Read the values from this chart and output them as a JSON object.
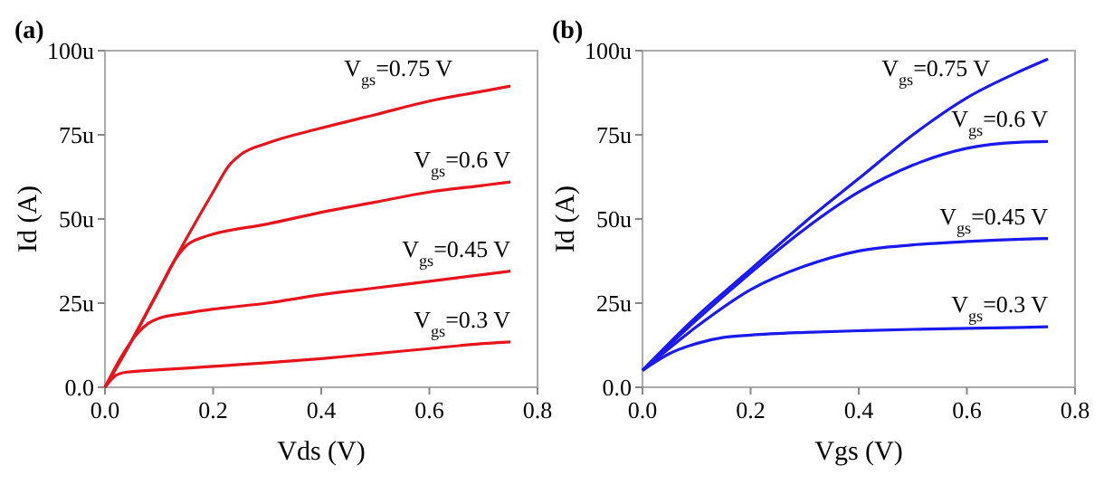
{
  "chart_data": [
    {
      "type": "line",
      "title": "(a)",
      "xlabel": "Vds (V)",
      "ylabel": "Id (A)",
      "xlim": [
        0,
        0.8
      ],
      "ylim": [
        0,
        100
      ],
      "xticks": [
        {
          "value": 0,
          "label": "0.0"
        },
        0.2,
        0.4,
        0.6,
        0.8
      ],
      "yticks": [
        {
          "value": 0,
          "label": "0.0"
        },
        {
          "value": 25,
          "label": "25u"
        },
        {
          "value": 50,
          "label": "50u"
        },
        {
          "value": 75,
          "label": "75u"
        },
        {
          "value": 100,
          "label": "100u"
        }
      ],
      "grid": false,
      "marker": "none",
      "line_style": "solid",
      "series": [
        {
          "name": "V$_{gs}$=0.75 V",
          "color": "#e8141c",
          "x": [
            0,
            0.05,
            0.1,
            0.15,
            0.2,
            0.23,
            0.25,
            0.3,
            0.4,
            0.5,
            0.6,
            0.7,
            0.75
          ],
          "values": [
            0,
            14,
            29,
            44,
            58,
            66,
            69,
            72.5,
            77,
            81,
            85,
            88,
            89.5
          ]
        },
        {
          "name": "V$_{gs}$=0.6 V",
          "color": "#e8141c",
          "x": [
            0,
            0.05,
            0.1,
            0.13,
            0.15,
            0.18,
            0.2,
            0.3,
            0.4,
            0.5,
            0.6,
            0.7,
            0.75
          ],
          "values": [
            0,
            14,
            29,
            38,
            42,
            44.5,
            45.5,
            48.5,
            52,
            55,
            58,
            60,
            61
          ]
        },
        {
          "name": "V$_{gs}$=0.45 V",
          "color": "#e8141c",
          "x": [
            0,
            0.03,
            0.06,
            0.08,
            0.1,
            0.15,
            0.2,
            0.3,
            0.4,
            0.5,
            0.6,
            0.7,
            0.75
          ],
          "values": [
            0,
            9,
            16,
            19,
            20.5,
            22,
            23.2,
            25,
            27.5,
            29.5,
            31.5,
            33.5,
            34.5
          ]
        },
        {
          "name": "V$_{gs}$=0.3 V",
          "color": "#e8141c",
          "x": [
            0,
            0.01,
            0.02,
            0.04,
            0.1,
            0.2,
            0.3,
            0.4,
            0.5,
            0.6,
            0.7,
            0.75
          ],
          "values": [
            0,
            2,
            3.5,
            4.5,
            5.2,
            6.2,
            7.3,
            8.5,
            10,
            11.5,
            13,
            13.5
          ]
        }
      ]
    },
    {
      "type": "line",
      "title": "(b)",
      "xlabel": "Vgs (V)",
      "ylabel": "Id (A)",
      "xlim": [
        0,
        0.8
      ],
      "ylim": [
        0,
        100
      ],
      "xticks": [
        {
          "value": 0,
          "label": "0.0"
        },
        0.2,
        0.4,
        0.6,
        0.8
      ],
      "yticks": [
        {
          "value": 0,
          "label": "0.0"
        },
        {
          "value": 25,
          "label": "25u"
        },
        {
          "value": 50,
          "label": "50u"
        },
        {
          "value": 75,
          "label": "75u"
        },
        {
          "value": 100,
          "label": "100u"
        }
      ],
      "grid": false,
      "marker": "none",
      "line_style": "solid",
      "series": [
        {
          "name": "V$_{gs}$=0.75 V",
          "color": "#1a1aee",
          "x": [
            0,
            0.1,
            0.2,
            0.3,
            0.4,
            0.5,
            0.6,
            0.7,
            0.75
          ],
          "values": [
            5,
            21,
            35,
            49,
            62,
            75,
            86,
            94,
            97.5
          ]
        },
        {
          "name": "V$_{gs}$=0.6 V",
          "color": "#1a1aee",
          "x": [
            0,
            0.1,
            0.2,
            0.3,
            0.4,
            0.5,
            0.6,
            0.7,
            0.75
          ],
          "values": [
            5,
            20,
            34,
            47,
            58,
            66,
            71,
            72.8,
            73
          ]
        },
        {
          "name": "V$_{gs}$=0.45 V",
          "color": "#1a1aee",
          "x": [
            0,
            0.1,
            0.2,
            0.3,
            0.4,
            0.5,
            0.6,
            0.7,
            0.75
          ],
          "values": [
            5,
            18,
            29,
            36,
            40.5,
            42.3,
            43.3,
            44,
            44.2
          ]
        },
        {
          "name": "V$_{gs}$=0.3 V",
          "color": "#1a1aee",
          "x": [
            0,
            0.05,
            0.1,
            0.15,
            0.2,
            0.3,
            0.4,
            0.5,
            0.6,
            0.7,
            0.75
          ],
          "values": [
            5,
            10,
            13,
            14.8,
            15.5,
            16.3,
            16.8,
            17.2,
            17.5,
            17.8,
            18
          ]
        }
      ]
    }
  ]
}
